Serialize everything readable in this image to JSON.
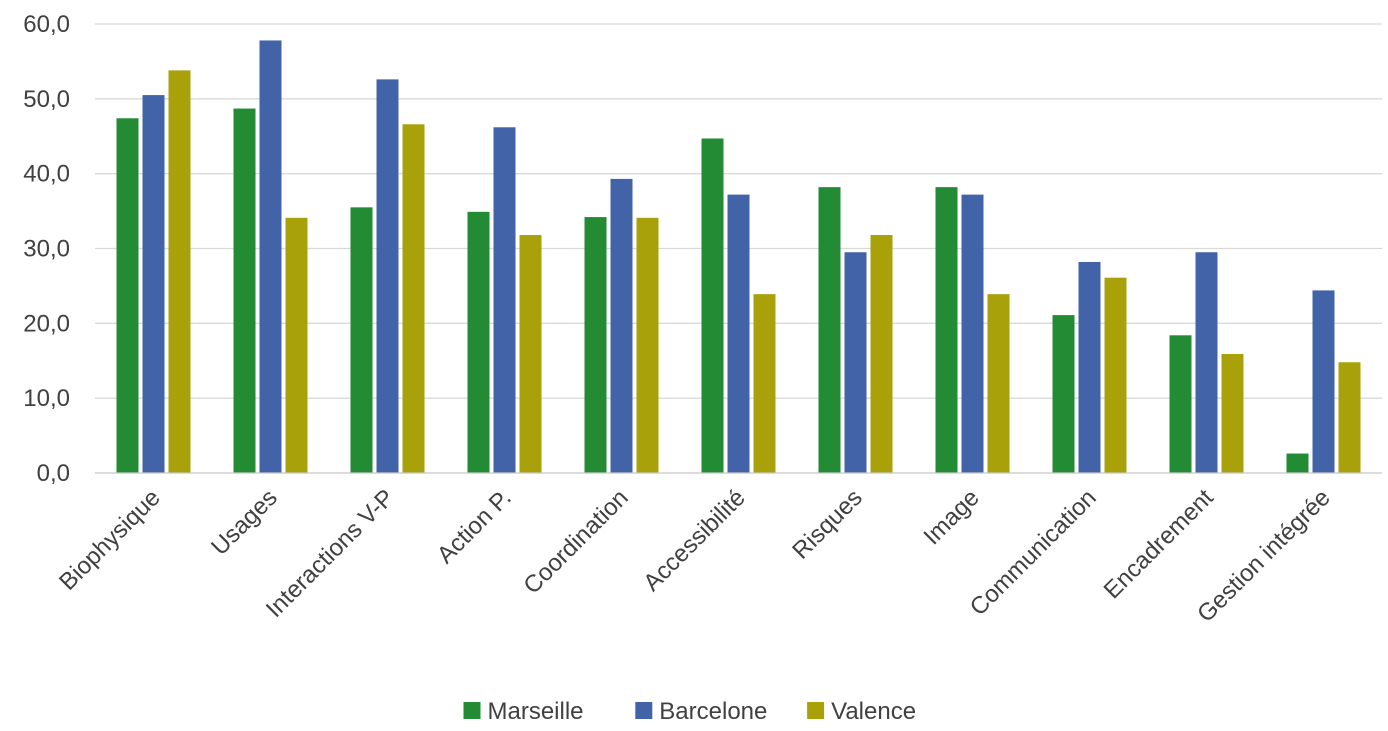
{
  "chart_data": {
    "type": "bar",
    "title": "",
    "xlabel": "",
    "ylabel": "",
    "ylim": [
      0,
      60
    ],
    "ytick_step": 10,
    "ytick_labels": [
      "0,0",
      "10,0",
      "20,0",
      "30,0",
      "40,0",
      "50,0",
      "60,0"
    ],
    "grid": true,
    "legend_position": "bottom",
    "categories": [
      "Biophysique",
      "Usages",
      "Interactions V-P",
      "Action P.",
      "Coordination",
      "Accessibilité",
      "Risques",
      "Image",
      "Communication",
      "Encadrement",
      "Gestion intégrée"
    ],
    "series": [
      {
        "name": "Marseille",
        "color": "#228b34",
        "values": [
          47.4,
          48.7,
          35.5,
          34.9,
          34.2,
          44.7,
          38.2,
          38.2,
          21.1,
          18.4,
          2.6
        ]
      },
      {
        "name": "Barcelone",
        "color": "#4263a8",
        "values": [
          50.5,
          57.8,
          52.6,
          46.2,
          39.3,
          37.2,
          29.5,
          37.2,
          28.2,
          29.5,
          24.4
        ]
      },
      {
        "name": "Valence",
        "color": "#a9a10a",
        "values": [
          53.8,
          34.1,
          46.6,
          31.8,
          34.1,
          23.9,
          31.8,
          23.9,
          26.1,
          15.9,
          14.8
        ]
      }
    ]
  }
}
